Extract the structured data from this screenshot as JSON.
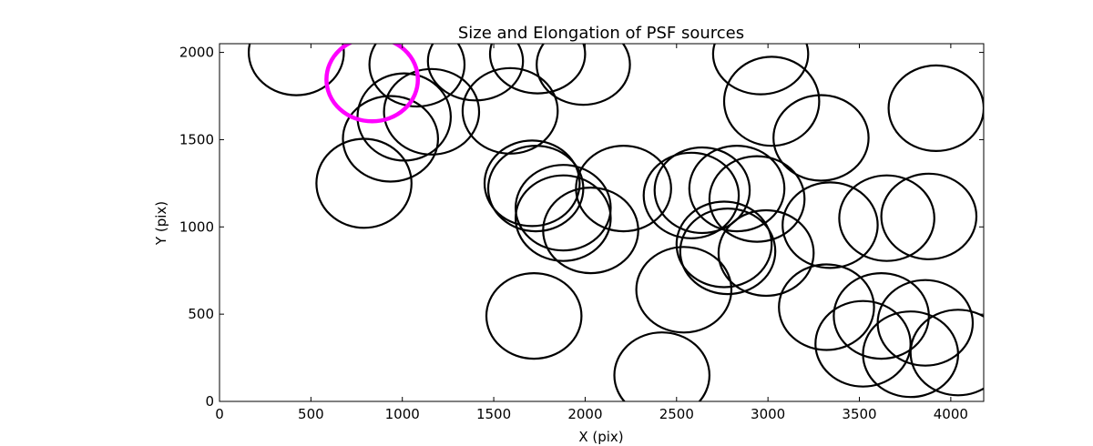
{
  "chart_data": {
    "type": "scatter",
    "title": "Size and Elongation of PSF sources",
    "xlabel": "X (pix)",
    "ylabel": "Y (pix)",
    "xlim": [
      0,
      4180
    ],
    "ylim": [
      0,
      2050
    ],
    "xticks": [
      0,
      500,
      1000,
      1500,
      2000,
      2500,
      3000,
      3500,
      4000
    ],
    "yticks": [
      0,
      500,
      1000,
      1500,
      2000
    ],
    "grid": false,
    "legend": "none",
    "colors": {
      "default": "#000000",
      "highlight": "#ff00ff"
    },
    "sources": [
      {
        "x": 420,
        "y": 2000,
        "width": 520,
        "height": 490,
        "angle": 0
      },
      {
        "x": 835,
        "y": 1845,
        "width": 500,
        "height": 480,
        "angle": 0,
        "highlight": true
      },
      {
        "x": 1080,
        "y": 1930,
        "width": 520,
        "height": 480,
        "angle": 0
      },
      {
        "x": 1400,
        "y": 1950,
        "width": 520,
        "height": 450,
        "angle": 0
      },
      {
        "x": 1740,
        "y": 1990,
        "width": 520,
        "height": 450,
        "angle": 0
      },
      {
        "x": 1990,
        "y": 1930,
        "width": 510,
        "height": 460,
        "angle": 0
      },
      {
        "x": 1010,
        "y": 1630,
        "width": 510,
        "height": 500,
        "angle": 0
      },
      {
        "x": 1160,
        "y": 1660,
        "width": 520,
        "height": 490,
        "angle": 0
      },
      {
        "x": 1590,
        "y": 1665,
        "width": 520,
        "height": 490,
        "angle": 0
      },
      {
        "x": 935,
        "y": 1505,
        "width": 520,
        "height": 490,
        "angle": 0
      },
      {
        "x": 790,
        "y": 1250,
        "width": 520,
        "height": 510,
        "angle": 0
      },
      {
        "x": 2960,
        "y": 1990,
        "width": 520,
        "height": 460,
        "angle": 0
      },
      {
        "x": 3020,
        "y": 1720,
        "width": 520,
        "height": 510,
        "angle": 0
      },
      {
        "x": 3290,
        "y": 1510,
        "width": 520,
        "height": 490,
        "angle": 0
      },
      {
        "x": 3920,
        "y": 1680,
        "width": 520,
        "height": 490,
        "angle": 0
      },
      {
        "x": 1710,
        "y": 1250,
        "width": 520,
        "height": 490,
        "angle": 0
      },
      {
        "x": 1730,
        "y": 1220,
        "width": 520,
        "height": 490,
        "angle": 0
      },
      {
        "x": 2210,
        "y": 1220,
        "width": 520,
        "height": 490,
        "angle": 0
      },
      {
        "x": 1880,
        "y": 1110,
        "width": 520,
        "height": 490,
        "angle": 0
      },
      {
        "x": 1880,
        "y": 1050,
        "width": 520,
        "height": 490,
        "angle": 0
      },
      {
        "x": 2030,
        "y": 980,
        "width": 520,
        "height": 490,
        "angle": 0
      },
      {
        "x": 2580,
        "y": 1180,
        "width": 520,
        "height": 490,
        "angle": 0
      },
      {
        "x": 2640,
        "y": 1210,
        "width": 520,
        "height": 490,
        "angle": 0
      },
      {
        "x": 2830,
        "y": 1220,
        "width": 520,
        "height": 490,
        "angle": 0
      },
      {
        "x": 2940,
        "y": 1160,
        "width": 520,
        "height": 490,
        "angle": 0
      },
      {
        "x": 2760,
        "y": 900,
        "width": 520,
        "height": 490,
        "angle": 0
      },
      {
        "x": 2780,
        "y": 860,
        "width": 520,
        "height": 490,
        "angle": 0
      },
      {
        "x": 2990,
        "y": 850,
        "width": 520,
        "height": 490,
        "angle": 0
      },
      {
        "x": 3340,
        "y": 1010,
        "width": 520,
        "height": 490,
        "angle": 0
      },
      {
        "x": 3650,
        "y": 1050,
        "width": 520,
        "height": 490,
        "angle": 0
      },
      {
        "x": 3880,
        "y": 1060,
        "width": 520,
        "height": 490,
        "angle": 0
      },
      {
        "x": 3320,
        "y": 540,
        "width": 520,
        "height": 490,
        "angle": 0
      },
      {
        "x": 3620,
        "y": 490,
        "width": 520,
        "height": 490,
        "angle": 0
      },
      {
        "x": 3860,
        "y": 450,
        "width": 520,
        "height": 490,
        "angle": 0
      },
      {
        "x": 3520,
        "y": 330,
        "width": 520,
        "height": 490,
        "angle": 0
      },
      {
        "x": 3780,
        "y": 270,
        "width": 520,
        "height": 490,
        "angle": 0
      },
      {
        "x": 4040,
        "y": 280,
        "width": 520,
        "height": 490,
        "angle": 0
      },
      {
        "x": 2540,
        "y": 640,
        "width": 520,
        "height": 490,
        "angle": 0
      },
      {
        "x": 1720,
        "y": 490,
        "width": 520,
        "height": 490,
        "angle": 0
      },
      {
        "x": 2420,
        "y": 150,
        "width": 520,
        "height": 490,
        "angle": 0
      }
    ]
  }
}
